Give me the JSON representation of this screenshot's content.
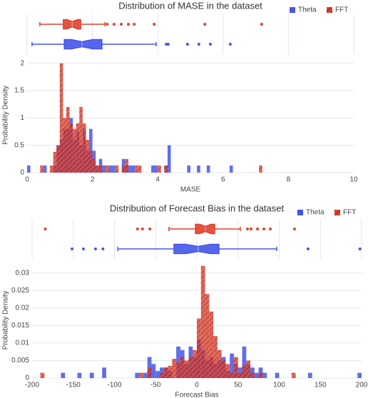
{
  "chart_data": [
    {
      "type": "histogram",
      "title": "Distribution of MASE in the dataset",
      "xlabel": "MASE",
      "ylabel": "Probability Density",
      "xlim": [
        0,
        10
      ],
      "xticks": [
        0,
        2,
        4,
        6,
        8,
        10
      ],
      "ylim": [
        0,
        2.1
      ],
      "yticks": [
        0,
        0.5,
        1,
        1.5,
        2
      ],
      "grid": true,
      "legend": "top right",
      "series": [
        {
          "name": "Theta",
          "color": "#4455e8",
          "bins": [
            0,
            0.1,
            0.5,
            0.6,
            0.8,
            0.9,
            1,
            1.1,
            1.2,
            1.3,
            1.4,
            1.5,
            1.6,
            1.7,
            1.8,
            1.9,
            2,
            2.1,
            2.2,
            2.3,
            2.4,
            2.5,
            2.6,
            2.7,
            2.9,
            3,
            3.1,
            3.2,
            3.3,
            3.8,
            3.9,
            4,
            4.2,
            4.3,
            4.4,
            4.9,
            5,
            5.2,
            5.3,
            5.5,
            5.6,
            6.2,
            6.3
          ],
          "values": [
            0.13,
            0,
            0.13,
            0,
            0.13,
            0.5,
            0.6,
            0.8,
            0.8,
            1.0,
            0.6,
            0.75,
            0.5,
            0.8,
            0.4,
            0.8,
            0.4,
            0.13,
            0.25,
            0.13,
            0,
            0.13,
            0.13,
            0,
            0.25,
            0.13,
            0.13,
            0.13,
            0,
            0.13,
            0.13,
            0,
            0.13,
            0.5,
            0,
            0.13,
            0,
            0.13,
            0,
            0.13,
            0,
            0.13
          ],
          "box": {
            "low": 0.15,
            "q1": 1.14,
            "median": 1.68,
            "q3": 2.29,
            "high": 3.95,
            "outliers": [
              4.26,
              4.32,
              4.91,
              5.26,
              5.61,
              6.22
            ]
          }
        },
        {
          "name": "FFT",
          "color": "#e0402e",
          "pattern": "hatch",
          "bins": [
            0.4,
            0.5,
            0.7,
            0.8,
            0.9,
            1,
            1.1,
            1.2,
            1.3,
            1.4,
            1.5,
            1.6,
            1.7,
            1.8,
            1.9,
            2,
            2.1,
            2.2,
            2.3,
            2.4,
            2.5,
            2.7,
            2.8,
            2.9,
            3,
            3.1,
            3.3,
            3.4,
            3.5,
            4,
            4.1,
            4.2,
            4.3,
            7.1,
            7.2
          ],
          "values": [
            0.13,
            0,
            0.13,
            0.38,
            0.5,
            2.0,
            1.0,
            1.2,
            0.9,
            0.8,
            0.9,
            1.2,
            0.9,
            0.6,
            0.4,
            0.25,
            0.13,
            0.13,
            0,
            0.13,
            0,
            0.13,
            0,
            0.13,
            0.25,
            0,
            0.13,
            0.13,
            0,
            0.13,
            0,
            0.13,
            0,
            0.13
          ],
          "box": {
            "low": 0.39,
            "q1": 1.11,
            "median": 1.38,
            "q3": 1.64,
            "high": 2.38,
            "outliers": [
              2.45,
              2.66,
              2.88,
              3.1,
              3.28,
              3.89,
              5.44,
              7.18
            ]
          }
        }
      ]
    },
    {
      "type": "histogram",
      "title": "Distribution of Forecast Bias in the dataset",
      "xlabel": "Forecast Bias",
      "ylabel": "Probability Density",
      "xlim": [
        -200,
        200
      ],
      "xticks": [
        -200,
        -150,
        -100,
        -50,
        0,
        50,
        100,
        150,
        200
      ],
      "ylim": [
        0,
        0.033
      ],
      "yticks": [
        0,
        0.005,
        0.01,
        0.015,
        0.02,
        0.025,
        0.03
      ],
      "grid": true,
      "legend": "top right",
      "series": [
        {
          "name": "Theta",
          "color": "#4455e8",
          "bins": [
            -165,
            -160,
            -145,
            -140,
            -130,
            -125,
            -115,
            -110,
            -75,
            -70,
            -65,
            -60,
            -55,
            -50,
            -45,
            -40,
            -35,
            -30,
            -25,
            -20,
            -15,
            -10,
            -5,
            0,
            5,
            10,
            15,
            20,
            25,
            30,
            35,
            40,
            45,
            50,
            55,
            60,
            65,
            70,
            75,
            80,
            85,
            95,
            100,
            135,
            140,
            195,
            200
          ],
          "values": [
            0.0015,
            0,
            0.0015,
            0,
            0.0015,
            0,
            0.003,
            0,
            0.0015,
            0,
            0.0015,
            0.006,
            0.004,
            0.002,
            0.003,
            0.003,
            0.002,
            0,
            0.009,
            0.008,
            0.004,
            0.009,
            0.006,
            0.011,
            0.008,
            0.005,
            0.006,
            0.004,
            0.005,
            0.006,
            0.002,
            0.007,
            0.004,
            0.003,
            0.009,
            0.004,
            0.003,
            0.0015,
            0.003,
            0.0015,
            0,
            0.0015,
            0,
            0.0015,
            0,
            0.0015
          ],
          "box": {
            "low": -96,
            "q1": -27.7,
            "median": 1.7,
            "q3": 26.8,
            "high": 97,
            "outliers": [
              -151.5,
              -137.7,
              -123,
              -114,
              135,
              198
            ]
          }
        },
        {
          "name": "FFT",
          "color": "#e0402e",
          "pattern": "hatch",
          "bins": [
            -190,
            -185,
            -70,
            -65,
            -60,
            -55,
            -45,
            -40,
            -35,
            -30,
            -25,
            -20,
            -15,
            -10,
            -5,
            0,
            5,
            10,
            15,
            20,
            25,
            30,
            35,
            40,
            45,
            50,
            55,
            60,
            65,
            70,
            75,
            80,
            115,
            120
          ],
          "values": [
            0.0015,
            0,
            0.0015,
            0,
            0.003,
            0,
            0.0015,
            0.003,
            0.0035,
            0.0055,
            0.0045,
            0.006,
            0.005,
            0.006,
            0.008,
            0.017,
            0.032,
            0.024,
            0.019,
            0.012,
            0.008,
            0.005,
            0.004,
            0.0015,
            0.006,
            0.0015,
            0.0035,
            0.005,
            0.0015,
            0,
            0.0015,
            0,
            0.0015
          ],
          "box": {
            "low": -33.8,
            "q1": -1.7,
            "median": 10.4,
            "q3": 21.7,
            "high": 52.8,
            "outliers": [
              -184,
              -72,
              -66,
              -57,
              61.5,
              65.8,
              73.6,
              81.4,
              89.2,
              118.6
            ]
          }
        }
      ]
    }
  ]
}
